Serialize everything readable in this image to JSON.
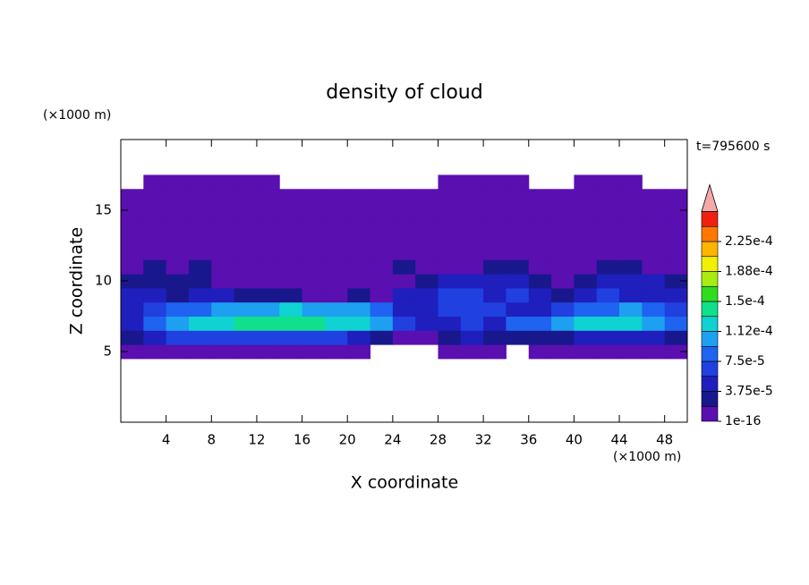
{
  "chart_data": {
    "type": "contour",
    "title": "density of cloud",
    "annotation": "t=795600 s",
    "xlabel": "X coordinate",
    "ylabel": "Z coordinate",
    "x_unit_label": "(×1000 m)",
    "y_unit_label": "(×1000 m)",
    "xlim": [
      0,
      50
    ],
    "ylim": [
      0,
      20
    ],
    "xticks": [
      4,
      8,
      12,
      16,
      20,
      24,
      28,
      32,
      36,
      40,
      44,
      48
    ],
    "yticks": [
      5,
      10,
      15
    ],
    "x": [
      1,
      3,
      5,
      7,
      9,
      11,
      13,
      15,
      17,
      19,
      21,
      23,
      25,
      27,
      29,
      31,
      33,
      35,
      37,
      39,
      41,
      43,
      45,
      47,
      49
    ],
    "z": [
      5,
      6,
      7,
      8,
      9,
      10,
      11,
      12,
      13,
      14,
      15,
      16,
      17
    ],
    "values": [
      [
        5e-06,
        5e-06,
        5e-06,
        5e-06,
        5e-06,
        5e-06,
        5e-06,
        5e-06,
        5e-06,
        5e-06,
        5e-06,
        null,
        null,
        null,
        5e-06,
        5e-06,
        5e-06,
        null,
        5e-06,
        5e-06,
        5e-06,
        5e-06,
        5e-06,
        5e-06,
        5e-06
      ],
      [
        2.5e-05,
        4.5e-05,
        6.5e-05,
        6.5e-05,
        6.5e-05,
        6.5e-05,
        6.5e-05,
        6.5e-05,
        6.5e-05,
        6.5e-05,
        4.5e-05,
        2.5e-05,
        5e-06,
        5e-06,
        2.5e-05,
        4.5e-05,
        2.5e-05,
        2.5e-05,
        2.5e-05,
        2.5e-05,
        4.5e-05,
        4.5e-05,
        4.5e-05,
        4.5e-05,
        2.5e-05
      ],
      [
        4.5e-05,
        8.5e-05,
        0.000105,
        0.000125,
        0.000125,
        0.00014,
        0.00014,
        0.00014,
        0.00014,
        0.000125,
        0.000125,
        0.000105,
        6.5e-05,
        4.5e-05,
        4.5e-05,
        6.5e-05,
        4.5e-05,
        8.5e-05,
        8.5e-05,
        0.000105,
        0.000125,
        0.000125,
        0.000125,
        0.000105,
        8.5e-05
      ],
      [
        4.5e-05,
        6.5e-05,
        8.5e-05,
        8.5e-05,
        0.000105,
        0.000105,
        0.000105,
        0.000125,
        0.000105,
        0.000105,
        0.000105,
        8.5e-05,
        4.5e-05,
        4.5e-05,
        6.5e-05,
        6.5e-05,
        6.5e-05,
        4.5e-05,
        4.5e-05,
        6.5e-05,
        8.5e-05,
        8.5e-05,
        0.000105,
        8.5e-05,
        6.5e-05
      ],
      [
        4.5e-05,
        4.5e-05,
        2.5e-05,
        4.5e-05,
        4.5e-05,
        2.5e-05,
        2.5e-05,
        2.5e-05,
        5e-06,
        5e-06,
        2.5e-05,
        5e-06,
        4.5e-05,
        4.5e-05,
        6.5e-05,
        6.5e-05,
        4.5e-05,
        6.5e-05,
        4.5e-05,
        2.5e-05,
        4.5e-05,
        6.5e-05,
        4.5e-05,
        4.5e-05,
        4.5e-05
      ],
      [
        2.5e-05,
        2.5e-05,
        2.5e-05,
        2.5e-05,
        5e-06,
        5e-06,
        5e-06,
        5e-06,
        5e-06,
        5e-06,
        5e-06,
        5e-06,
        5e-06,
        2.5e-05,
        4.5e-05,
        4.5e-05,
        4.5e-05,
        4.5e-05,
        2.5e-05,
        5e-06,
        2.5e-05,
        4.5e-05,
        4.5e-05,
        4.5e-05,
        2.5e-05
      ],
      [
        5e-06,
        2.5e-05,
        5e-06,
        2.5e-05,
        5e-06,
        5e-06,
        5e-06,
        5e-06,
        5e-06,
        5e-06,
        5e-06,
        5e-06,
        2.5e-05,
        5e-06,
        5e-06,
        5e-06,
        2.5e-05,
        2.5e-05,
        5e-06,
        5e-06,
        5e-06,
        2.5e-05,
        2.5e-05,
        5e-06,
        5e-06
      ],
      [
        5e-06,
        5e-06,
        5e-06,
        5e-06,
        5e-06,
        5e-06,
        5e-06,
        5e-06,
        5e-06,
        5e-06,
        5e-06,
        5e-06,
        5e-06,
        5e-06,
        5e-06,
        5e-06,
        5e-06,
        5e-06,
        5e-06,
        5e-06,
        5e-06,
        5e-06,
        5e-06,
        5e-06,
        5e-06
      ],
      [
        5e-06,
        5e-06,
        5e-06,
        5e-06,
        5e-06,
        5e-06,
        5e-06,
        5e-06,
        5e-06,
        5e-06,
        5e-06,
        5e-06,
        5e-06,
        5e-06,
        5e-06,
        5e-06,
        5e-06,
        5e-06,
        5e-06,
        5e-06,
        5e-06,
        5e-06,
        5e-06,
        5e-06,
        5e-06
      ],
      [
        5e-06,
        5e-06,
        5e-06,
        5e-06,
        5e-06,
        5e-06,
        5e-06,
        5e-06,
        5e-06,
        5e-06,
        5e-06,
        5e-06,
        5e-06,
        5e-06,
        5e-06,
        5e-06,
        5e-06,
        5e-06,
        5e-06,
        5e-06,
        5e-06,
        5e-06,
        5e-06,
        5e-06,
        5e-06
      ],
      [
        5e-06,
        5e-06,
        5e-06,
        5e-06,
        5e-06,
        5e-06,
        5e-06,
        5e-06,
        5e-06,
        5e-06,
        5e-06,
        5e-06,
        5e-06,
        5e-06,
        5e-06,
        5e-06,
        5e-06,
        5e-06,
        5e-06,
        5e-06,
        5e-06,
        5e-06,
        5e-06,
        5e-06,
        5e-06
      ],
      [
        5e-06,
        5e-06,
        5e-06,
        5e-06,
        5e-06,
        5e-06,
        5e-06,
        5e-06,
        5e-06,
        5e-06,
        5e-06,
        5e-06,
        5e-06,
        5e-06,
        5e-06,
        5e-06,
        5e-06,
        5e-06,
        5e-06,
        5e-06,
        5e-06,
        5e-06,
        5e-06,
        5e-06,
        5e-06
      ],
      [
        null,
        5e-06,
        5e-06,
        5e-06,
        5e-06,
        5e-06,
        5e-06,
        null,
        null,
        null,
        null,
        null,
        null,
        null,
        5e-06,
        5e-06,
        5e-06,
        5e-06,
        null,
        null,
        5e-06,
        5e-06,
        5e-06,
        null,
        null
      ]
    ],
    "colorbar": {
      "levels": [
        1e-16,
        1.875e-05,
        3.75e-05,
        5.625e-05,
        7.5e-05,
        9.375e-05,
        0.0001125,
        0.00013125,
        0.00015,
        0.00016875,
        0.0001875,
        0.00020625,
        0.000225,
        0.00024375
      ],
      "colors": [
        "#5a0fb0",
        "#18188c",
        "#1f1fbe",
        "#2040e0",
        "#1e64f0",
        "#1ea0f0",
        "#10d2d2",
        "#10e08c",
        "#30dc20",
        "#a8ec10",
        "#f0f000",
        "#ffb400",
        "#ff7800",
        "#f02010"
      ],
      "extend_color": "#f4a8a8",
      "ticks": [
        1e-16,
        {
          "value": 3.75e-05,
          "label": "3.75e-5"
        },
        {
          "value": 7.5e-05,
          "label": "7.5e-5"
        },
        {
          "value": 0.0001125,
          "label": "1.12e-4"
        },
        {
          "value": 0.00015,
          "label": "1.5e-4"
        },
        {
          "value": 0.0001875,
          "label": "1.88e-4"
        },
        {
          "value": 0.000225,
          "label": "2.25e-4"
        }
      ]
    }
  }
}
